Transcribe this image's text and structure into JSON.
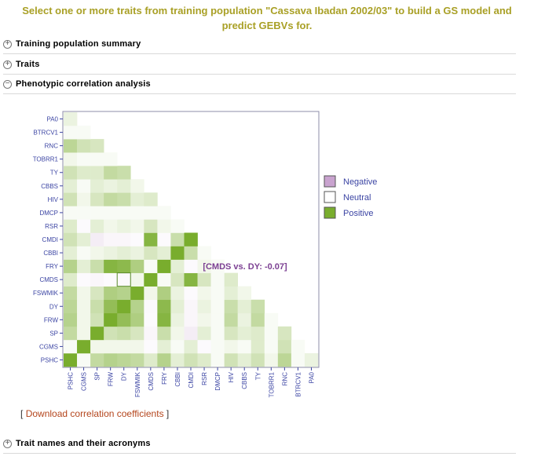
{
  "header": {
    "title_line1": "Select one or more traits from training population \"Cassava Ibadan 2002/03\" to build a GS model and",
    "title_line2": "predict GEBVs for."
  },
  "sections": [
    {
      "label": "Training population summary",
      "state": "collapsed"
    },
    {
      "label": "Traits",
      "state": "collapsed"
    },
    {
      "label": "Phenotypic correlation analysis",
      "state": "expanded"
    },
    {
      "label": "Trait names and their acronyms",
      "state": "collapsed"
    }
  ],
  "download": {
    "open_bracket": "[",
    "link_text": "Download correlation coefficients",
    "close_bracket": "]"
  },
  "chart_data": {
    "type": "heatmap",
    "traits": [
      "PSHC",
      "CGMS",
      "SP",
      "FRW",
      "DY",
      "FSWMIK",
      "CMDS",
      "FRY",
      "CBBI",
      "CMDI",
      "RSR",
      "DMCP",
      "HIV",
      "CBBS",
      "TY",
      "TOBRR1",
      "RNC",
      "BTRCV1",
      "PA0"
    ],
    "matrix": [
      [
        1.0,
        0.05,
        0.45,
        0.55,
        0.5,
        0.45,
        0.25,
        0.55,
        0.2,
        0.35,
        0.25,
        0.05,
        0.35,
        0.2,
        0.35,
        0.1,
        0.5,
        0.05,
        0.15
      ],
      [
        0.05,
        1.0,
        0.1,
        0.1,
        0.1,
        0.1,
        -0.05,
        0.2,
        0.05,
        0.2,
        -0.05,
        0.05,
        0.1,
        0.05,
        0.25,
        0.05,
        0.35,
        0.05,
        0.05
      ],
      [
        0.45,
        0.1,
        1.0,
        0.35,
        0.4,
        0.3,
        -0.1,
        0.4,
        0.1,
        -0.2,
        0.2,
        0.05,
        0.3,
        0.2,
        0.25,
        0.05,
        0.3,
        0.05,
        0.1
      ],
      [
        0.55,
        0.1,
        0.35,
        1.0,
        0.8,
        0.6,
        -0.05,
        0.9,
        0.15,
        -0.1,
        0.1,
        0.05,
        0.45,
        0.15,
        0.45,
        0.05,
        0.85,
        0.05,
        -0.15
      ],
      [
        0.5,
        0.1,
        0.4,
        0.8,
        1.0,
        0.55,
        -0.07,
        0.85,
        0.2,
        -0.1,
        0.15,
        0.05,
        0.4,
        0.2,
        0.4,
        0.05,
        0.85,
        0.05,
        -0.15
      ],
      [
        0.45,
        0.1,
        0.3,
        0.6,
        0.55,
        1.0,
        0.1,
        0.6,
        0.15,
        -0.05,
        0.1,
        0.05,
        0.2,
        0.1,
        0.85,
        0.05,
        0.55,
        0.05,
        -0.05
      ],
      [
        0.25,
        -0.05,
        -0.1,
        -0.05,
        -0.07,
        0.1,
        1.0,
        0.05,
        0.3,
        0.9,
        0.3,
        0.05,
        0.25,
        0.3,
        0.15,
        0.05,
        -0.35,
        0.1,
        -0.2
      ],
      [
        0.55,
        0.2,
        0.4,
        0.9,
        0.85,
        0.6,
        0.05,
        1.0,
        0.2,
        -0.05,
        0.1,
        0.05,
        0.45,
        0.2,
        0.45,
        0.05,
        0.9,
        0.05,
        -0.2
      ],
      [
        0.2,
        0.05,
        0.1,
        0.15,
        0.2,
        0.15,
        0.3,
        0.2,
        1.0,
        0.4,
        0.05,
        0.05,
        0.1,
        0.35,
        0.1,
        0.05,
        0.1,
        0.05,
        -0.1
      ],
      [
        0.35,
        0.2,
        -0.2,
        -0.1,
        -0.1,
        -0.05,
        0.9,
        -0.05,
        0.4,
        1.0,
        0.2,
        -0.05,
        0.1,
        0.45,
        0.05,
        0.05,
        -0.25,
        0.1,
        -0.1
      ],
      [
        0.25,
        -0.05,
        0.2,
        0.1,
        0.15,
        0.1,
        0.3,
        0.1,
        0.05,
        0.2,
        1.0,
        -0.45,
        0.1,
        0.05,
        0.1,
        0.05,
        0.05,
        0.05,
        -0.1
      ],
      [
        0.05,
        0.05,
        0.05,
        0.05,
        0.05,
        0.05,
        0.05,
        0.05,
        0.05,
        -0.05,
        -0.45,
        1.0,
        -0.1,
        0.05,
        -0.05,
        0.05,
        0.05,
        0.05,
        0.05
      ],
      [
        0.35,
        0.1,
        0.3,
        0.45,
        0.4,
        0.2,
        0.25,
        0.45,
        0.1,
        0.1,
        0.1,
        -0.1,
        1.0,
        -0.35,
        0.4,
        0.05,
        0.4,
        0.05,
        -0.1
      ],
      [
        0.2,
        0.05,
        0.2,
        0.15,
        0.2,
        0.1,
        0.3,
        0.2,
        0.35,
        0.45,
        0.05,
        0.05,
        -0.35,
        1.0,
        0.1,
        0.05,
        0.1,
        0.05,
        -0.1
      ],
      [
        0.35,
        0.25,
        0.25,
        0.45,
        0.4,
        0.85,
        0.15,
        0.45,
        0.1,
        0.05,
        0.1,
        -0.05,
        0.4,
        0.1,
        1.0,
        0.05,
        -0.2,
        0.05,
        -0.1
      ],
      [
        0.1,
        0.05,
        0.05,
        0.05,
        0.05,
        0.05,
        0.05,
        0.05,
        0.05,
        0.05,
        0.05,
        0.05,
        0.05,
        0.05,
        0.05,
        1.0,
        0.05,
        0.05,
        0.05
      ],
      [
        0.5,
        0.35,
        0.3,
        0.85,
        0.85,
        0.55,
        -0.35,
        0.9,
        0.1,
        -0.25,
        0.05,
        0.05,
        0.4,
        0.1,
        -0.2,
        0.05,
        1.0,
        0.1,
        -0.2
      ],
      [
        0.05,
        0.05,
        0.05,
        0.05,
        0.05,
        0.05,
        0.1,
        0.05,
        0.05,
        0.1,
        0.05,
        0.05,
        0.05,
        0.05,
        0.05,
        0.05,
        0.1,
        1.0,
        0.05
      ],
      [
        0.15,
        0.05,
        0.1,
        -0.15,
        -0.15,
        -0.05,
        -0.2,
        -0.2,
        -0.1,
        -0.1,
        -0.1,
        0.05,
        -0.1,
        -0.1,
        -0.1,
        0.05,
        -0.2,
        0.05,
        1.0
      ]
    ],
    "highlight": {
      "row": "CMDS",
      "col": "DY",
      "value": -0.07,
      "label": "[CMDS vs. DY: -0.07]"
    },
    "legend": [
      {
        "label": "Negative",
        "color": "#c9a3cf"
      },
      {
        "label": "Neutral",
        "color": "#ffffff"
      },
      {
        "label": "Positive",
        "color": "#79ad2d"
      }
    ],
    "colors": {
      "negative": "#c9a3cf",
      "neutral": "#ffffff",
      "positive": "#79ad2d",
      "label_text": "#3b44a3",
      "tooltip_text": "#7b3f92"
    }
  }
}
